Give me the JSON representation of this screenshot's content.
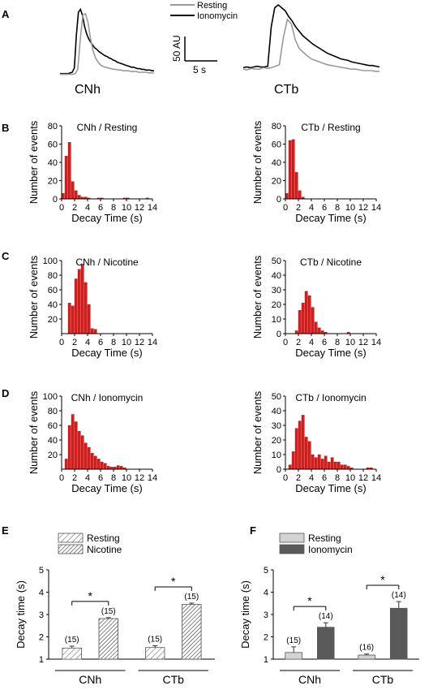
{
  "panels": {
    "A": "A",
    "B": "B",
    "C": "C",
    "D": "D",
    "E": "E",
    "F": "F"
  },
  "traces": {
    "legend": {
      "resting": "Resting",
      "ionomycin": "Ionomycin"
    },
    "colors": {
      "resting": "#9a9a9a",
      "ionomycin": "#000000"
    },
    "scale_y_label": "50 AU",
    "scale_x_label": "5 s",
    "labels": [
      "CNh",
      "CTb"
    ],
    "cnh": {
      "resting": [
        5,
        5,
        5,
        5,
        5,
        5,
        6,
        12,
        55,
        88,
        90,
        78,
        55,
        38,
        28,
        22,
        18,
        16,
        15,
        14,
        13,
        12,
        12,
        11,
        11,
        10,
        10,
        10,
        9,
        9,
        9,
        8,
        8,
        8,
        8,
        7,
        7,
        7
      ],
      "ionomycin": [
        6,
        6,
        6,
        6,
        6,
        7,
        8,
        14,
        60,
        92,
        96,
        88,
        72,
        62,
        55,
        50,
        46,
        42,
        40,
        37,
        35,
        33,
        31,
        30,
        28,
        27,
        25,
        24,
        22,
        21,
        20,
        19,
        18,
        17,
        16,
        15,
        15,
        14,
        13,
        13,
        12,
        12,
        11,
        11,
        11,
        10,
        10
      ]
    },
    "ctb": {
      "resting": [
        12,
        11,
        13,
        12,
        12,
        14,
        13,
        14,
        16,
        18,
        55,
        80,
        74,
        52,
        40,
        35,
        30,
        26,
        24,
        22,
        20,
        18,
        17,
        16,
        15,
        14,
        13,
        12,
        12,
        11,
        10,
        10,
        10,
        9,
        9
      ],
      "ionomycin": [
        14,
        15,
        14,
        15,
        16,
        15,
        15,
        16,
        70,
        96,
        100,
        96,
        92,
        84,
        78,
        70,
        64,
        58,
        54,
        50,
        46,
        43,
        40,
        37,
        34,
        32,
        30,
        28,
        26,
        25,
        24,
        22,
        21,
        20,
        19,
        18,
        17,
        17,
        16,
        15
      ]
    }
  },
  "chart_data": [
    {
      "type": "bar",
      "title": "CNh / Resting",
      "xlabel": "Decay Time (s)",
      "ylabel": "Number of events",
      "xlim": [
        0,
        14
      ],
      "ylim": [
        0,
        80
      ],
      "xticks": [
        0,
        2,
        4,
        6,
        8,
        10,
        12,
        14
      ],
      "yticks": [
        0,
        20,
        40,
        60,
        80
      ],
      "bin_width": 0.5,
      "x": [
        0.25,
        0.75,
        1.25,
        1.75,
        2.25,
        2.75,
        3.25,
        3.75,
        4.25,
        5.75,
        6.25,
        9.75,
        10.25,
        13.25
      ],
      "values": [
        6,
        47,
        62,
        19,
        9,
        4,
        2,
        2,
        1,
        1,
        1,
        1,
        1,
        1
      ],
      "color": "#cc2222"
    },
    {
      "type": "bar",
      "title": "CTb / Resting",
      "xlabel": "Decay Time (s)",
      "ylabel": "Number of events",
      "xlim": [
        0,
        14
      ],
      "ylim": [
        0,
        80
      ],
      "xticks": [
        0,
        2,
        4,
        6,
        8,
        10,
        12,
        14
      ],
      "yticks": [
        0,
        20,
        40,
        60,
        80
      ],
      "bin_width": 0.5,
      "x": [
        0.25,
        0.75,
        1.25,
        1.75,
        2.25,
        2.75
      ],
      "values": [
        6,
        64,
        65,
        29,
        9,
        2
      ],
      "color": "#cc2222"
    },
    {
      "type": "bar",
      "title": "CNh / Nicotine",
      "xlabel": "Decay Time (s)",
      "ylabel": "Number of events",
      "xlim": [
        0,
        14
      ],
      "ylim": [
        0,
        100
      ],
      "xticks": [
        0,
        2,
        4,
        6,
        8,
        10,
        12,
        14
      ],
      "yticks": [
        20,
        40,
        60,
        80,
        100
      ],
      "bin_width": 0.5,
      "x": [
        1.25,
        1.75,
        2.25,
        2.75,
        3.25,
        3.75,
        4.25,
        4.75,
        5.25
      ],
      "values": [
        42,
        38,
        75,
        88,
        95,
        70,
        40,
        7,
        6
      ],
      "color": "#cc2222"
    },
    {
      "type": "bar",
      "title": "CTb / Nicotine",
      "xlabel": "Decay Time (s)",
      "ylabel": "Number of events",
      "xlim": [
        0,
        14
      ],
      "ylim": [
        0,
        50
      ],
      "xticks": [
        0,
        2,
        4,
        6,
        8,
        10,
        12,
        14
      ],
      "yticks": [
        0,
        10,
        20,
        30,
        40,
        50
      ],
      "bin_width": 0.5,
      "x": [
        1.75,
        2.25,
        2.75,
        3.25,
        3.75,
        4.25,
        4.75,
        5.25,
        5.75,
        6.25,
        9.75
      ],
      "values": [
        2,
        16,
        21,
        29,
        26,
        18,
        8,
        4,
        2,
        1,
        1
      ],
      "color": "#cc2222"
    },
    {
      "type": "bar",
      "title": "CNh / Ionomycin",
      "xlabel": "Decay Time (s)",
      "ylabel": "Number of events",
      "xlim": [
        0,
        14
      ],
      "ylim": [
        0,
        100
      ],
      "xticks": [
        0,
        2,
        4,
        6,
        8,
        10,
        12,
        14
      ],
      "yticks": [
        20,
        40,
        60,
        80,
        100
      ],
      "bin_width": 0.5,
      "x": [
        0.75,
        1.25,
        1.75,
        2.25,
        2.75,
        3.25,
        3.75,
        4.25,
        4.75,
        5.25,
        5.75,
        6.25,
        6.75,
        7.25,
        7.75,
        8.25,
        8.75,
        9.25,
        9.75
      ],
      "values": [
        14,
        60,
        75,
        65,
        52,
        46,
        36,
        30,
        22,
        18,
        14,
        10,
        8,
        4,
        3,
        3,
        5,
        4,
        2
      ],
      "color": "#cc2222"
    },
    {
      "type": "bar",
      "title": "CTb / Ionomycin",
      "xlabel": "Decay Time (s)",
      "ylabel": "Number of events",
      "xlim": [
        0,
        14
      ],
      "ylim": [
        0,
        50
      ],
      "xticks": [
        0,
        2,
        4,
        6,
        8,
        10,
        12,
        14
      ],
      "yticks": [
        0,
        10,
        20,
        30,
        40,
        50
      ],
      "bin_width": 0.5,
      "x": [
        0.75,
        1.25,
        1.75,
        2.25,
        2.75,
        3.25,
        3.75,
        4.25,
        4.75,
        5.25,
        5.75,
        6.25,
        6.75,
        7.25,
        7.75,
        8.25,
        8.75,
        9.25,
        9.75,
        10.25,
        12.75,
        13.25
      ],
      "values": [
        3,
        12,
        28,
        33,
        37,
        22,
        19,
        10,
        8,
        10,
        7,
        9,
        5,
        8,
        5,
        5,
        3,
        3,
        2,
        1,
        1,
        1
      ],
      "color": "#cc2222"
    },
    {
      "type": "bar",
      "ylabel": "Decay time (s)",
      "categories": [
        "CNh",
        "CTb"
      ],
      "ylim": [
        1,
        5
      ],
      "yticks": [
        1,
        2,
        3,
        4,
        5
      ],
      "series": [
        {
          "name": "Resting",
          "values": [
            1.5,
            1.52
          ],
          "errors": [
            0.08,
            0.08
          ],
          "n": [
            "(15)",
            "(15)"
          ],
          "style": "hatched-light"
        },
        {
          "name": "Nicotine",
          "values": [
            2.82,
            3.45
          ],
          "errors": [
            0.04,
            0.06
          ],
          "n": [
            "(15)",
            "(15)"
          ],
          "style": "hatched-dark"
        }
      ],
      "significance": [
        "*",
        "*"
      ]
    },
    {
      "type": "bar",
      "ylabel": "Decay time (s)",
      "categories": [
        "CNh",
        "CTb"
      ],
      "ylim": [
        1,
        5
      ],
      "yticks": [
        1,
        2,
        3,
        4,
        5
      ],
      "series": [
        {
          "name": "Resting",
          "values": [
            1.3,
            1.18
          ],
          "errors": [
            0.25,
            0.05
          ],
          "n": [
            "(15)",
            "(16)"
          ],
          "color": "#d3d3d3"
        },
        {
          "name": "Ionomycin",
          "values": [
            2.43,
            3.28
          ],
          "errors": [
            0.2,
            0.3
          ],
          "n": [
            "(14)",
            "(14)"
          ],
          "color": "#5a5a5a"
        }
      ],
      "significance": [
        "*",
        "*"
      ]
    }
  ]
}
